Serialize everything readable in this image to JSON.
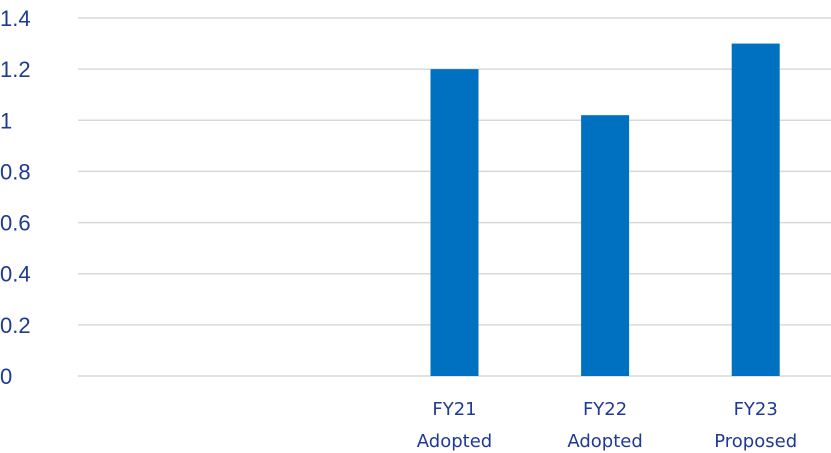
{
  "chart_data": {
    "type": "bar",
    "categories": [
      [
        "",
        ""
      ],
      [
        "",
        ""
      ],
      [
        "FY21",
        "Adopted"
      ],
      [
        "FY22",
        "Adopted"
      ],
      [
        "FY23",
        "Proposed"
      ]
    ],
    "values": [
      null,
      null,
      1.2,
      1.02,
      1.3
    ],
    "ylim": [
      0,
      1.4
    ],
    "yticks": [
      "0",
      "0.2",
      "0.4",
      "0.6",
      "0.8",
      "1",
      "1.2",
      "1.4"
    ],
    "ytick_values": [
      0,
      0.2,
      0.4,
      0.6,
      0.8,
      1,
      1.2,
      1.4
    ],
    "grid": true,
    "legend": "none",
    "colors": {
      "bar": "#0070c0",
      "text": "#1f3a93",
      "grid": "#d9d9d9"
    }
  }
}
